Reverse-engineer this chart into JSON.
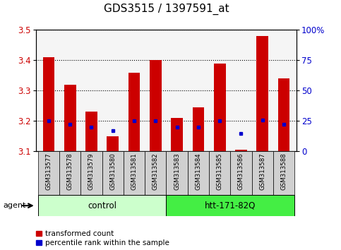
{
  "title": "GDS3515 / 1397591_at",
  "samples": [
    "GSM313577",
    "GSM313578",
    "GSM313579",
    "GSM313580",
    "GSM313581",
    "GSM313582",
    "GSM313583",
    "GSM313584",
    "GSM313585",
    "GSM313586",
    "GSM313587",
    "GSM313588"
  ],
  "red_values": [
    3.41,
    3.32,
    3.23,
    3.15,
    3.36,
    3.4,
    3.21,
    3.245,
    3.39,
    3.105,
    3.48,
    3.34
  ],
  "blue_values": [
    3.2,
    3.188,
    3.18,
    3.167,
    3.2,
    3.2,
    3.18,
    3.18,
    3.2,
    3.158,
    3.203,
    3.188
  ],
  "ylim_left": [
    3.1,
    3.5
  ],
  "ylim_right": [
    0,
    100
  ],
  "yticks_left": [
    3.1,
    3.2,
    3.3,
    3.4,
    3.5
  ],
  "yticks_right": [
    0,
    25,
    50,
    75,
    100
  ],
  "ytick_labels_right": [
    "0",
    "25",
    "50",
    "75",
    "100%"
  ],
  "group_labels": [
    "control",
    "htt-171-82Q"
  ],
  "bar_color": "#cc0000",
  "dot_color": "#0000cc",
  "agent_label": "agent",
  "legend_red": "transformed count",
  "legend_blue": "percentile rank within the sample",
  "bar_width": 0.55,
  "background_plot": "#f5f5f5",
  "title_fontsize": 11,
  "axis_label_color_left": "#cc0000",
  "axis_label_color_right": "#0000cc",
  "ctrl_color": "#ccffcc",
  "htt_color": "#44ee44"
}
